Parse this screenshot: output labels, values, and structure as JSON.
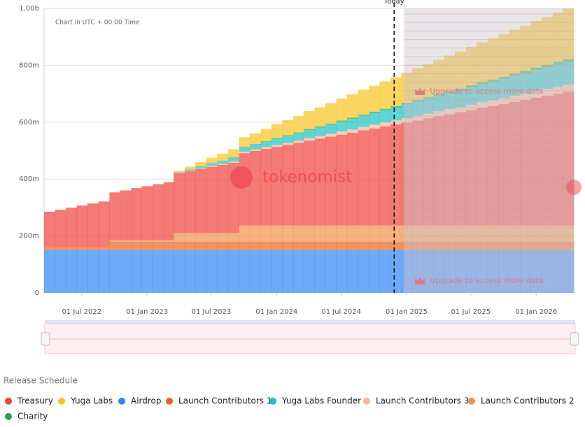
{
  "chart_data": {
    "type": "stacked-step-area",
    "note": "Chart in UTC + 00:00 Time",
    "watermark": "tokenomist",
    "upgrade_note": "Upgrade to access more data",
    "legend_title": "Release Schedule",
    "today": {
      "x": "2024-11-27",
      "label": "Today"
    },
    "xlim": [
      "2022-03-17",
      "2026-04-17"
    ],
    "xticks": [
      {
        "value": "2022-07-01",
        "label": "01 Jul 2022"
      },
      {
        "value": "2023-01-01",
        "label": "01 Jan 2023"
      },
      {
        "value": "2023-07-01",
        "label": "01 Jul 2023"
      },
      {
        "value": "2024-01-01",
        "label": "01 Jan 2024"
      },
      {
        "value": "2024-07-01",
        "label": "01 Jul 2024"
      },
      {
        "value": "2025-01-01",
        "label": "01 Jan 2025"
      },
      {
        "value": "2025-07-01",
        "label": "01 Jul 2025"
      },
      {
        "value": "2026-01-01",
        "label": "01 Jan 2026"
      }
    ],
    "ylim": [
      0,
      1000
    ],
    "yticks": [
      0,
      {
        "value": 200,
        "label": "200m"
      },
      {
        "value": 400,
        "label": "400m"
      },
      {
        "value": 600,
        "label": "600m"
      },
      {
        "value": 800,
        "label": "800m"
      },
      {
        "value": 1000,
        "label": "1.00b"
      }
    ],
    "grid": true,
    "x": [
      "2022-03-17",
      "2022-04-17",
      "2022-05-17",
      "2022-06-17",
      "2022-07-17",
      "2022-08-17",
      "2022-09-17",
      "2022-10-17",
      "2022-11-17",
      "2022-12-17",
      "2023-01-17",
      "2023-02-17",
      "2023-03-17",
      "2023-04-17",
      "2023-05-17",
      "2023-06-17",
      "2023-07-17",
      "2023-08-17",
      "2023-09-17",
      "2023-10-17",
      "2023-11-17",
      "2023-12-17",
      "2024-01-17",
      "2024-02-17",
      "2024-03-17",
      "2024-04-17",
      "2024-05-17",
      "2024-06-17",
      "2024-07-17",
      "2024-08-17",
      "2024-09-17",
      "2024-10-17",
      "2024-11-17",
      "2024-12-17",
      "2025-01-17",
      "2025-02-17",
      "2025-03-17",
      "2025-04-17",
      "2025-05-17",
      "2025-06-17",
      "2025-07-17",
      "2025-08-17",
      "2025-09-17",
      "2025-10-17",
      "2025-11-17",
      "2025-12-17",
      "2026-01-17",
      "2026-02-17",
      "2026-03-17"
    ],
    "series": [
      {
        "name": "Airdrop",
        "color": "#2f86f6",
        "values": [
          150,
          150,
          150,
          150,
          150,
          150,
          150,
          150,
          150,
          150,
          150,
          150,
          150,
          150,
          150,
          150,
          150,
          150,
          150,
          150,
          150,
          150,
          150,
          150,
          150,
          150,
          150,
          150,
          150,
          150,
          150,
          150,
          150,
          150,
          150,
          150,
          150,
          150,
          150,
          150,
          150,
          150,
          150,
          150,
          150,
          150,
          150,
          150,
          150
        ]
      },
      {
        "name": "Launch Contributors 1",
        "color": "#e8651c",
        "values": [
          10,
          10,
          10,
          10,
          10,
          10,
          30,
          30,
          30,
          30,
          30,
          30,
          30,
          30,
          30,
          30,
          30,
          30,
          30,
          30,
          30,
          30,
          30,
          30,
          30,
          30,
          30,
          30,
          30,
          30,
          30,
          30,
          30,
          30,
          30,
          30,
          30,
          30,
          30,
          30,
          30,
          30,
          30,
          30,
          30,
          30,
          30,
          30,
          30
        ]
      },
      {
        "name": "Launch Contributors 2",
        "color": "#f2914a",
        "values": [
          0,
          0,
          0,
          0,
          0,
          0,
          5,
          5,
          5,
          5,
          5,
          5,
          30,
          30,
          30,
          30,
          30,
          30,
          57,
          57,
          57,
          57,
          57,
          57,
          57,
          57,
          57,
          57,
          57,
          57,
          57,
          57,
          57,
          57,
          57,
          57,
          57,
          57,
          57,
          57,
          57,
          57,
          57,
          57,
          57,
          57,
          57,
          57,
          57
        ]
      },
      {
        "name": "Treasury",
        "color": "#f0413a",
        "values": [
          125,
          132,
          139,
          147,
          154,
          161,
          168,
          175,
          183,
          190,
          197,
          204,
          211,
          218,
          226,
          233,
          240,
          247,
          254,
          262,
          269,
          276,
          283,
          290,
          298,
          305,
          312,
          319,
          326,
          334,
          341,
          348,
          355,
          362,
          369,
          377,
          384,
          391,
          398,
          405,
          413,
          420,
          427,
          434,
          441,
          449,
          456,
          463,
          470
        ]
      },
      {
        "name": "Launch Contributors 3",
        "color": "#f5b896",
        "values": [
          0,
          0,
          0,
          0,
          0,
          0,
          0,
          0,
          0,
          0,
          0,
          0,
          1,
          1,
          2,
          3,
          3,
          4,
          5,
          5,
          6,
          7,
          7,
          8,
          9,
          9,
          10,
          11,
          11,
          12,
          13,
          14,
          14,
          15,
          16,
          16,
          17,
          18,
          18,
          19,
          20,
          20,
          21,
          22,
          22,
          23,
          24,
          24,
          25
        ]
      },
      {
        "name": "Yuga Labs Founder",
        "color": "#1cc2c2",
        "values": [
          0,
          0,
          0,
          0,
          0,
          0,
          0,
          0,
          0,
          0,
          0,
          0,
          2,
          4,
          6,
          9,
          11,
          13,
          15,
          17,
          19,
          22,
          24,
          26,
          28,
          30,
          32,
          35,
          37,
          39,
          41,
          43,
          45,
          48,
          50,
          52,
          54,
          56,
          58,
          61,
          63,
          65,
          67,
          69,
          71,
          74,
          76,
          78,
          80
        ]
      },
      {
        "name": "Charity",
        "color": "#1fa64a",
        "values": [
          0,
          0,
          0,
          0,
          0,
          0,
          0,
          0,
          0,
          0,
          0,
          0,
          0,
          1,
          1,
          1,
          1,
          2,
          2,
          2,
          2,
          3,
          3,
          3,
          4,
          4,
          4,
          4,
          5,
          5,
          5,
          5,
          6,
          6,
          6,
          6,
          7,
          7,
          7,
          8,
          8,
          8,
          8,
          9,
          9,
          9,
          9,
          10,
          10
        ]
      },
      {
        "name": "Yuga Labs",
        "color": "#f9c31f",
        "values": [
          0,
          0,
          0,
          0,
          0,
          0,
          0,
          0,
          0,
          0,
          0,
          0,
          5,
          10,
          14,
          19,
          24,
          29,
          34,
          38,
          43,
          48,
          53,
          58,
          63,
          67,
          72,
          77,
          82,
          87,
          91,
          96,
          101,
          106,
          111,
          115,
          120,
          125,
          130,
          135,
          140,
          144,
          149,
          154,
          159,
          164,
          168,
          173,
          178
        ]
      }
    ]
  }
}
